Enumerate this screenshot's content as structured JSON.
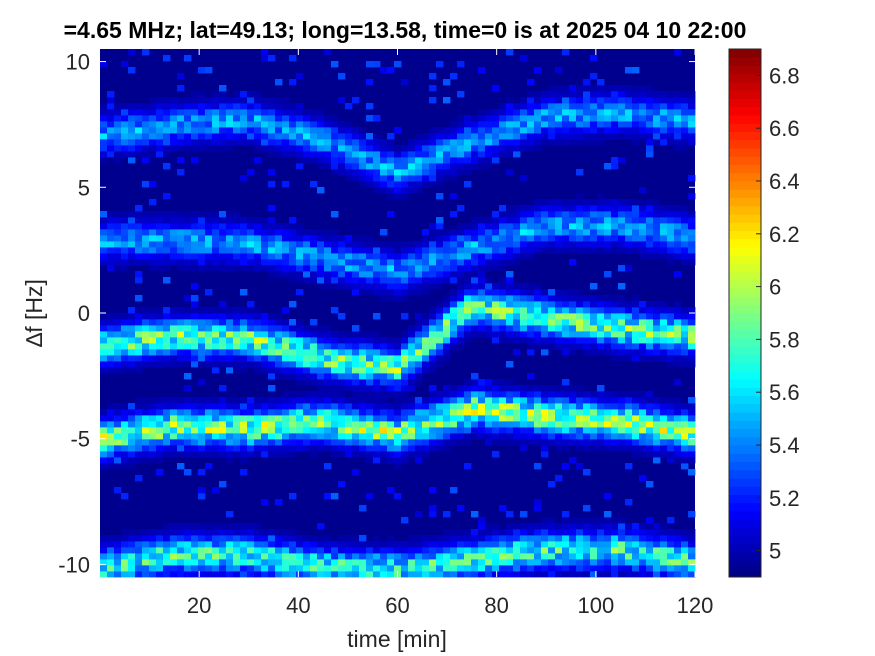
{
  "chart_data": {
    "type": "heatmap",
    "title": "=4.65 MHz;  lat=49.13; long=13.58, time=0 is at 2025 04 10 22:00",
    "xlabel": "time [min]",
    "ylabel": "∆f [Hz]",
    "xlim": [
      0,
      120
    ],
    "ylim": [
      -10.5,
      10.5
    ],
    "xticks": [
      20,
      40,
      60,
      80,
      100,
      120
    ],
    "xtick_labels": [
      "20",
      "40",
      "60",
      "80",
      "100",
      "120"
    ],
    "yticks": [
      10,
      5,
      0,
      -5,
      -10
    ],
    "ytick_labels": [
      "10",
      "5",
      "0",
      "-5",
      "-10"
    ],
    "colormap": "jet",
    "clim": [
      4.9,
      6.9
    ],
    "colorbar_ticks": [
      6.8,
      6.6,
      6.4,
      6.2,
      6,
      5.8,
      5.6,
      5.4,
      5.2,
      5
    ],
    "colorbar_tick_labels": [
      "6.8",
      "6.6",
      "6.4",
      "6.2",
      "6",
      "5.8",
      "5.6",
      "5.4",
      "5.2",
      "5"
    ],
    "background_value": 4.95,
    "bands": [
      {
        "points": [
          [
            0,
            7.1
          ],
          [
            15,
            7.5
          ],
          [
            30,
            7.7
          ],
          [
            45,
            6.9
          ],
          [
            60,
            5.6
          ],
          [
            75,
            6.8
          ],
          [
            90,
            7.8
          ],
          [
            105,
            8.0
          ],
          [
            120,
            7.6
          ]
        ],
        "peak": 5.5
      },
      {
        "points": [
          [
            0,
            2.9
          ],
          [
            15,
            2.9
          ],
          [
            30,
            2.8
          ],
          [
            45,
            2.2
          ],
          [
            60,
            1.6
          ],
          [
            75,
            2.6
          ],
          [
            90,
            3.5
          ],
          [
            105,
            3.5
          ],
          [
            120,
            3.0
          ]
        ],
        "peak": 5.5
      },
      {
        "points": [
          [
            0,
            -1.3
          ],
          [
            15,
            -0.9
          ],
          [
            30,
            -1.0
          ],
          [
            45,
            -1.8
          ],
          [
            60,
            -2.2
          ],
          [
            75,
            0.3
          ],
          [
            90,
            -0.2
          ],
          [
            105,
            -0.6
          ],
          [
            120,
            -0.9
          ]
        ],
        "peak": 5.9
      },
      {
        "points": [
          [
            0,
            -5.0
          ],
          [
            15,
            -4.5
          ],
          [
            30,
            -4.6
          ],
          [
            45,
            -4.3
          ],
          [
            60,
            -4.8
          ],
          [
            75,
            -3.8
          ],
          [
            90,
            -4.1
          ],
          [
            105,
            -4.3
          ],
          [
            120,
            -4.8
          ]
        ],
        "peak": 6.0
      },
      {
        "points": [
          [
            0,
            -10.1
          ],
          [
            15,
            -9.6
          ],
          [
            30,
            -9.6
          ],
          [
            45,
            -10.1
          ],
          [
            60,
            -10.2
          ],
          [
            75,
            -9.8
          ],
          [
            90,
            -9.4
          ],
          [
            105,
            -9.4
          ],
          [
            120,
            -9.9
          ]
        ],
        "peak": 5.8
      }
    ]
  }
}
